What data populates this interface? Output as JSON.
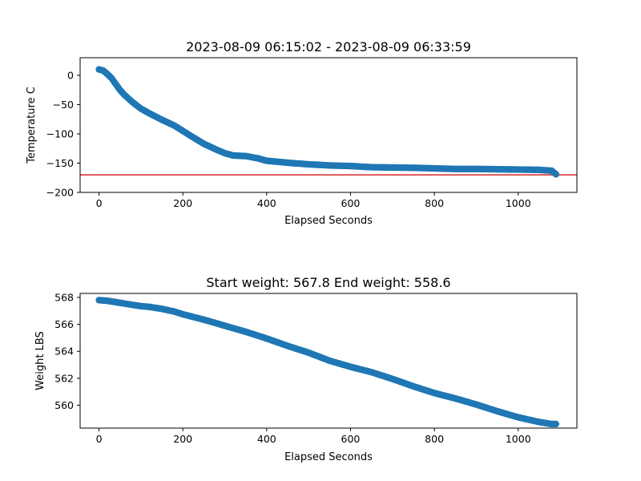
{
  "chart_data": [
    {
      "type": "scatter",
      "title": "2023-08-09 06:15:02 - 2023-08-09 06:33:59",
      "xlabel": "Elapsed Seconds",
      "ylabel": "Temperature C",
      "xlim": [
        -45,
        1140
      ],
      "ylim": [
        -200,
        30
      ],
      "xticks": [
        0,
        200,
        400,
        600,
        800,
        1000
      ],
      "yticks": [
        0,
        -50,
        -100,
        -150,
        -200
      ],
      "ytick_labels": [
        "0",
        "−50",
        "−100",
        "−150",
        "−200"
      ],
      "grid": false,
      "marker_color": "#1f77b4",
      "hline": {
        "y": -170,
        "color": "#d62728"
      },
      "series": [
        {
          "x": [
            0,
            10,
            20,
            30,
            40,
            50,
            60,
            80,
            100,
            120,
            150,
            180,
            200,
            220,
            250,
            280,
            300,
            320,
            350,
            380,
            400,
            430,
            460,
            500,
            550,
            600,
            650,
            700,
            750,
            800,
            850,
            900,
            950,
            1000,
            1050,
            1080,
            1090
          ],
          "y": [
            10,
            8,
            2,
            -5,
            -15,
            -25,
            -33,
            -46,
            -57,
            -65,
            -76,
            -86,
            -95,
            -104,
            -117,
            -127,
            -133,
            -137,
            -138,
            -142,
            -146,
            -148,
            -150,
            -152,
            -154,
            -155,
            -157,
            -157.5,
            -158,
            -159,
            -160,
            -160,
            -160.5,
            -161,
            -161.5,
            -163,
            -169
          ]
        }
      ]
    },
    {
      "type": "scatter",
      "title": "Start weight: 567.8 End weight: 558.6",
      "xlabel": "Elapsed Seconds",
      "ylabel": "Weight LBS",
      "xlim": [
        -45,
        1140
      ],
      "ylim": [
        558.3,
        568.3
      ],
      "xticks": [
        0,
        200,
        400,
        600,
        800,
        1000
      ],
      "yticks": [
        568,
        566,
        564,
        562,
        560
      ],
      "grid": false,
      "marker_color": "#1f77b4",
      "series": [
        {
          "x": [
            0,
            20,
            50,
            80,
            100,
            120,
            150,
            180,
            200,
            250,
            300,
            350,
            400,
            450,
            500,
            550,
            600,
            650,
            700,
            750,
            800,
            850,
            900,
            950,
            1000,
            1050,
            1080,
            1090
          ],
          "y": [
            567.8,
            567.75,
            567.6,
            567.45,
            567.35,
            567.3,
            567.15,
            566.95,
            566.75,
            566.35,
            565.9,
            565.45,
            564.95,
            564.4,
            563.9,
            563.3,
            562.85,
            562.45,
            561.95,
            561.4,
            560.9,
            560.5,
            560.05,
            559.55,
            559.1,
            558.75,
            558.6,
            558.6
          ]
        }
      ]
    }
  ]
}
